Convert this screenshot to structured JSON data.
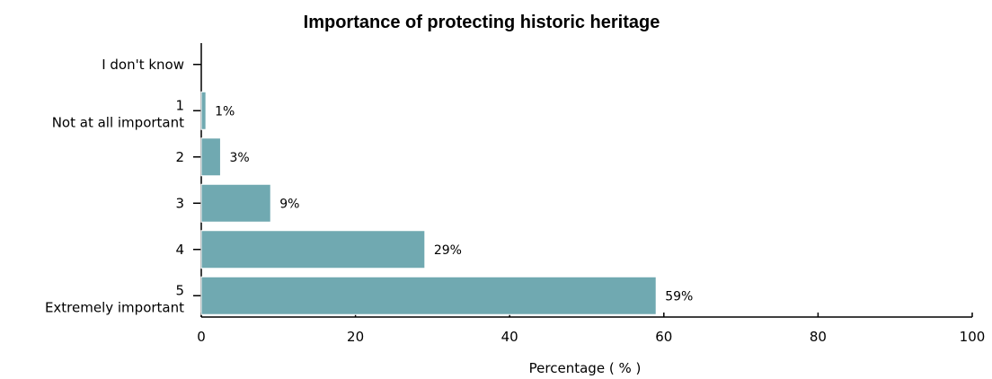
{
  "chart_data": {
    "type": "bar",
    "orientation": "horizontal",
    "title": "Importance of protecting historic heritage",
    "xlabel": "Percentage ( % )",
    "ylabel": "",
    "xlim": [
      0,
      100
    ],
    "x_ticks": [
      0,
      20,
      40,
      60,
      80,
      100
    ],
    "grid": false,
    "bar_color": "#70A9B1",
    "categories": [
      {
        "code": "",
        "label": "I don't know",
        "value": 0,
        "value_label": ""
      },
      {
        "code": "1",
        "label": "Not at all important",
        "value": 0.6,
        "value_label": "1%"
      },
      {
        "code": "2",
        "label": "",
        "value": 2.5,
        "value_label": "3%"
      },
      {
        "code": "3",
        "label": "",
        "value": 9,
        "value_label": "9%"
      },
      {
        "code": "4",
        "label": "",
        "value": 29,
        "value_label": "29%"
      },
      {
        "code": "5",
        "label": "Extremely important",
        "value": 59,
        "value_label": "59%"
      }
    ]
  }
}
